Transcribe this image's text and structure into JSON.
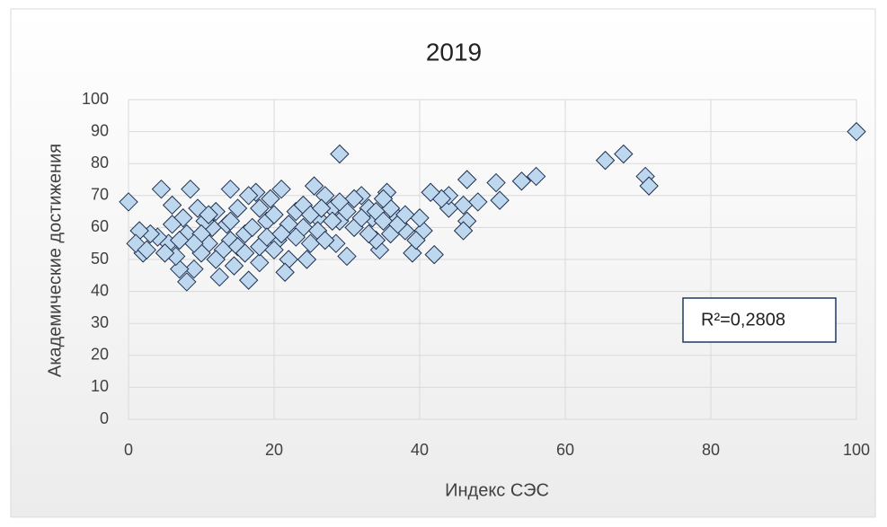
{
  "chart_data": {
    "type": "scatter",
    "title": "2019",
    "x_label": "Индекс СЭС",
    "y_label": "Академические достижения",
    "annotation": "R²=0,2808",
    "marker_color": "#bdd7ee",
    "marker_edge": "#1f2f4f",
    "grid": true,
    "xlim": [
      0,
      100
    ],
    "xticks": [
      0,
      20,
      40,
      60,
      80,
      100
    ],
    "ylim": [
      0,
      100
    ],
    "yticks": [
      0,
      10,
      20,
      30,
      40,
      50,
      60,
      70,
      80,
      90,
      100
    ],
    "x": [
      100,
      68,
      65.5,
      71,
      71.5,
      56,
      54,
      50.5,
      51,
      48,
      46.5,
      46.5,
      46,
      46,
      44,
      44,
      43,
      41.5,
      42,
      40.5,
      40,
      39,
      39.5,
      38,
      37,
      36,
      35.5,
      35,
      34.5,
      34,
      33.5,
      33,
      32,
      31,
      30,
      29,
      29,
      28.5,
      28,
      27,
      26,
      25.5,
      25,
      24.5,
      24,
      23,
      22,
      21.5,
      21,
      20.5,
      19.5,
      19,
      18,
      18,
      17.5,
      16.5,
      16.5,
      16,
      15,
      14.5,
      14,
      14,
      13,
      12.5,
      12,
      11.5,
      11,
      10.5,
      10,
      9.5,
      9,
      8.5,
      8,
      8,
      7.5,
      7,
      6.5,
      6,
      5.5,
      5,
      4.5,
      4,
      3,
      2,
      1.5,
      1,
      0,
      2.5,
      10,
      12,
      13.5,
      15,
      17,
      19,
      20,
      22,
      23,
      24,
      26,
      27,
      28,
      30,
      31,
      32,
      34,
      35,
      36,
      20,
      18,
      16,
      11,
      9,
      7,
      6,
      25,
      33,
      37,
      29,
      21,
      14,
      26.5,
      38
    ],
    "values": [
      90,
      83,
      81,
      76,
      73,
      76,
      74.5,
      74,
      68.5,
      68,
      75,
      62,
      59,
      67,
      66,
      70,
      69,
      71,
      51.5,
      59,
      63,
      52,
      56,
      59,
      63,
      66,
      71,
      69,
      53,
      56,
      63,
      66,
      70,
      69,
      51,
      83,
      62,
      55,
      66,
      70,
      63,
      73,
      55,
      50,
      60,
      65,
      50,
      46,
      72,
      56,
      69,
      62,
      49,
      54,
      71,
      43.5,
      70,
      58,
      66,
      48,
      72,
      56,
      53,
      44.5,
      65,
      60,
      55,
      62,
      52,
      66,
      47,
      72,
      43,
      58,
      63,
      47,
      51,
      61,
      55,
      52,
      72,
      57,
      58,
      52,
      59,
      55,
      68,
      53,
      58,
      50,
      61,
      54,
      60,
      57,
      64,
      61,
      57,
      67,
      59,
      56,
      62,
      65,
      60,
      63,
      65,
      62,
      58,
      53,
      66,
      52,
      64,
      55,
      56,
      67,
      64,
      58,
      61,
      68,
      58,
      62,
      66,
      64
    ]
  }
}
